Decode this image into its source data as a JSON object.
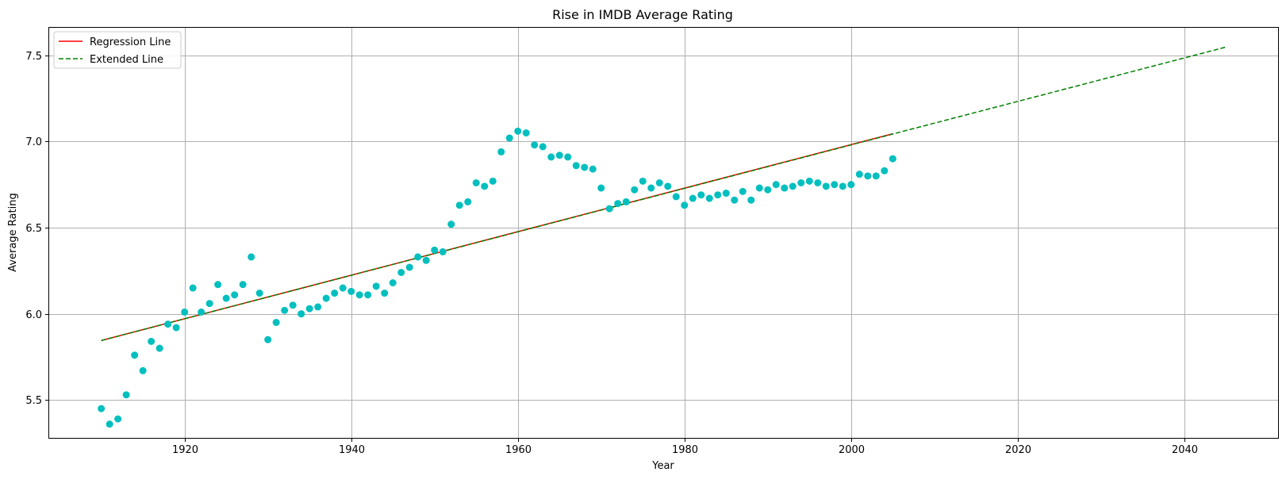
{
  "chart_data": {
    "type": "scatter",
    "title": "Rise in IMDB Average Rating",
    "xlabel": "Year",
    "ylabel": "Average Rating",
    "xlim": [
      1903.75,
      2051.25
    ],
    "ylim": [
      5.28,
      7.66
    ],
    "xticks": [
      1920,
      1940,
      1960,
      1980,
      2000,
      2020,
      2040
    ],
    "yticks": [
      5.5,
      6.0,
      6.5,
      7.0,
      7.5
    ],
    "grid": true,
    "legend_position": "top-left",
    "colors": {
      "points": "#00bfbf",
      "regression": "#ff0000",
      "extended": "#008000",
      "grid": "#b0b0b0",
      "axes": "#000000"
    },
    "scatter": {
      "name": "",
      "x": [
        1910,
        1911,
        1912,
        1913,
        1914,
        1915,
        1916,
        1917,
        1918,
        1919,
        1920,
        1921,
        1922,
        1923,
        1924,
        1925,
        1926,
        1927,
        1928,
        1929,
        1930,
        1931,
        1932,
        1933,
        1934,
        1935,
        1936,
        1937,
        1938,
        1939,
        1940,
        1941,
        1942,
        1943,
        1944,
        1945,
        1946,
        1947,
        1948,
        1949,
        1950,
        1951,
        1952,
        1953,
        1954,
        1955,
        1956,
        1957,
        1958,
        1959,
        1960,
        1961,
        1962,
        1963,
        1964,
        1965,
        1966,
        1967,
        1968,
        1969,
        1970,
        1971,
        1972,
        1973,
        1974,
        1975,
        1976,
        1977,
        1978,
        1979,
        1980,
        1981,
        1982,
        1983,
        1984,
        1985,
        1986,
        1987,
        1988,
        1989,
        1990,
        1991,
        1992,
        1993,
        1994,
        1995,
        1996,
        1997,
        1998,
        1999,
        2000,
        2001,
        2002,
        2003,
        2004,
        2005
      ],
      "y": [
        5.45,
        5.36,
        5.39,
        5.53,
        5.76,
        5.67,
        5.84,
        5.8,
        5.94,
        5.92,
        6.01,
        6.15,
        6.01,
        6.06,
        6.17,
        6.09,
        6.11,
        6.17,
        6.33,
        6.12,
        5.85,
        5.95,
        6.02,
        6.05,
        6.0,
        6.03,
        6.04,
        6.09,
        6.12,
        6.15,
        6.13,
        6.11,
        6.11,
        6.16,
        6.12,
        6.18,
        6.24,
        6.27,
        6.33,
        6.31,
        6.37,
        6.36,
        6.52,
        6.63,
        6.65,
        6.76,
        6.74,
        6.77,
        6.94,
        7.02,
        7.06,
        7.05,
        6.98,
        6.97,
        6.91,
        6.92,
        6.91,
        6.86,
        6.85,
        6.84,
        6.73,
        6.61,
        6.64,
        6.65,
        6.72,
        6.77,
        6.73,
        6.76,
        6.74,
        6.68,
        6.63,
        6.67,
        6.69,
        6.67,
        6.69,
        6.7,
        6.66,
        6.71,
        6.66,
        6.73,
        6.72,
        6.75,
        6.73,
        6.74,
        6.76,
        6.77,
        6.76,
        6.74,
        6.75,
        6.74,
        6.75,
        6.81,
        6.8,
        6.8,
        6.83,
        6.9
      ]
    },
    "series": [
      {
        "name": "Regression Line",
        "x": [
          1910,
          2005
        ],
        "y": [
          5.845,
          7.045
        ],
        "style": "solid"
      },
      {
        "name": "Extended Line",
        "x": [
          1910,
          2045
        ],
        "y": [
          5.845,
          7.548
        ],
        "style": "dashed"
      }
    ]
  }
}
